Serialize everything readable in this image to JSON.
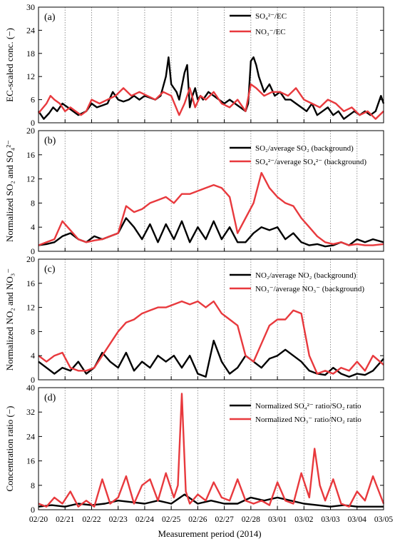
{
  "colors": {
    "black": "#000000",
    "red": "#e8393d",
    "grid": "#7a7a7a"
  },
  "x_axis": {
    "label": "Measurement period (2014)",
    "ticks": [
      "02/20",
      "02/21",
      "02/22",
      "02/23",
      "02/24",
      "02/25",
      "02/26",
      "02/27",
      "02/28",
      "03/01",
      "03/02",
      "03/03",
      "03/04",
      "03/05"
    ]
  },
  "chart_data": [
    {
      "type": "line",
      "panel_label": "(a)",
      "ylabel": "EC-scaled conc. (−)",
      "ylim": [
        0,
        30
      ],
      "yticks": [
        "0",
        "6",
        "12",
        "18",
        "24",
        "30"
      ],
      "x_domain": [
        0,
        13
      ],
      "legend_position": "top-right",
      "series": [
        {
          "name": "SO₄²⁻/EC",
          "color": "#000000",
          "x": [
            0,
            0.2,
            0.4,
            0.55,
            0.7,
            0.9,
            1.1,
            1.3,
            1.5,
            1.8,
            2.0,
            2.2,
            2.4,
            2.6,
            2.8,
            3.0,
            3.2,
            3.4,
            3.6,
            3.8,
            4.0,
            4.2,
            4.4,
            4.6,
            4.8,
            4.9,
            5.0,
            5.1,
            5.2,
            5.3,
            5.5,
            5.6,
            5.7,
            5.8,
            5.9,
            6.0,
            6.1,
            6.2,
            6.4,
            6.6,
            6.8,
            7.0,
            7.2,
            7.4,
            7.6,
            7.8,
            7.9,
            8.0,
            8.1,
            8.2,
            8.3,
            8.5,
            8.7,
            8.9,
            9.1,
            9.3,
            9.5,
            9.7,
            9.9,
            10.1,
            10.3,
            10.5,
            10.7,
            10.9,
            11.1,
            11.3,
            11.5,
            11.7,
            11.9,
            12.1,
            12.3,
            12.5,
            12.7,
            12.9,
            13.0
          ],
          "y": [
            3,
            1,
            2.5,
            4,
            3,
            5,
            4,
            3,
            2,
            3,
            5,
            4,
            4.5,
            5,
            8,
            6,
            5.5,
            6,
            7,
            6,
            7,
            6.5,
            6,
            7,
            12,
            17,
            10,
            9,
            8,
            6,
            13,
            15,
            4,
            7,
            9,
            6,
            7,
            6,
            8,
            7,
            6,
            5,
            6,
            5,
            4,
            3,
            5,
            16,
            17,
            15,
            12,
            8,
            10,
            7,
            8,
            6,
            6,
            5,
            4,
            3,
            5,
            2,
            3,
            4,
            2,
            3,
            1,
            2,
            3,
            2,
            3,
            2,
            3,
            7,
            5
          ]
        },
        {
          "name": "NO₃⁻/EC",
          "color": "#e8393d",
          "x": [
            0,
            0.3,
            0.45,
            0.6,
            0.8,
            1.0,
            1.2,
            1.4,
            1.6,
            1.8,
            2.0,
            2.3,
            2.6,
            2.9,
            3.2,
            3.5,
            3.8,
            4.1,
            4.4,
            4.7,
            5.0,
            5.3,
            5.5,
            5.7,
            5.9,
            6.1,
            6.3,
            6.6,
            6.9,
            7.2,
            7.5,
            7.8,
            8.0,
            8.2,
            8.5,
            8.8,
            9.1,
            9.4,
            9.7,
            10.0,
            10.3,
            10.6,
            10.9,
            11.2,
            11.5,
            11.8,
            12.1,
            12.4,
            12.7,
            13.0
          ],
          "y": [
            2.5,
            5,
            7,
            6,
            5,
            3,
            4,
            3,
            2,
            3,
            6,
            5,
            6,
            7,
            9,
            7,
            8,
            7,
            6,
            8,
            7,
            2,
            5,
            9,
            4,
            7,
            6,
            8,
            5,
            4,
            6,
            3,
            10,
            9,
            7,
            8,
            8,
            7,
            9,
            6,
            5,
            4,
            6,
            5,
            3,
            4,
            2,
            3,
            1,
            3
          ]
        }
      ]
    },
    {
      "type": "line",
      "panel_label": "(b)",
      "ylabel": "Normalized SO₂ and SO₄²⁻",
      "ylim": [
        0,
        20
      ],
      "yticks": [
        "0",
        "4",
        "8",
        "12",
        "16",
        "20"
      ],
      "x_domain": [
        0,
        13
      ],
      "legend_position": "top-right",
      "series": [
        {
          "name": "SO₂/average SO₂ (background)",
          "color": "#000000",
          "x": [
            0,
            0.3,
            0.6,
            0.9,
            1.2,
            1.5,
            1.8,
            2.1,
            2.4,
            2.7,
            3.0,
            3.3,
            3.6,
            3.9,
            4.2,
            4.5,
            4.8,
            5.1,
            5.4,
            5.7,
            6.0,
            6.3,
            6.6,
            6.9,
            7.2,
            7.5,
            7.8,
            8.1,
            8.4,
            8.7,
            9.0,
            9.3,
            9.6,
            9.9,
            10.2,
            10.5,
            10.8,
            11.1,
            11.4,
            11.7,
            12.0,
            12.3,
            12.6,
            13.0
          ],
          "y": [
            1,
            1.2,
            1.5,
            2.5,
            3,
            2,
            1.5,
            2.5,
            2,
            2.5,
            3,
            5.5,
            4,
            2,
            4.5,
            1.5,
            4.5,
            2,
            5,
            1.5,
            4,
            2,
            5,
            2,
            4,
            1.5,
            1.5,
            3,
            4,
            3.5,
            4,
            2,
            3,
            1.5,
            1,
            1.2,
            0.8,
            1,
            1.5,
            1,
            2,
            1.5,
            2,
            1.5
          ]
        },
        {
          "name": "SO₄²⁻/average SO₄²⁻ (background)",
          "color": "#e8393d",
          "x": [
            0,
            0.3,
            0.6,
            0.9,
            1.2,
            1.5,
            1.8,
            2.1,
            2.4,
            2.7,
            3.0,
            3.3,
            3.6,
            3.9,
            4.2,
            4.5,
            4.8,
            5.1,
            5.4,
            5.7,
            6.0,
            6.3,
            6.6,
            6.9,
            7.2,
            7.5,
            7.8,
            8.1,
            8.4,
            8.7,
            9.0,
            9.3,
            9.6,
            9.9,
            10.2,
            10.5,
            10.8,
            11.1,
            11.4,
            11.7,
            12.0,
            12.3,
            12.6,
            13.0
          ],
          "y": [
            1,
            1.5,
            2,
            5,
            3.5,
            2,
            1.5,
            1.8,
            2,
            2.5,
            3,
            7.5,
            6.5,
            7,
            8,
            8.5,
            9,
            8,
            9.5,
            9.5,
            10,
            10.5,
            11,
            10.5,
            9,
            3,
            5.5,
            8,
            13,
            10.5,
            9,
            8,
            7.5,
            5.5,
            4,
            2.5,
            1.5,
            1.2,
            1.5,
            1,
            1.2,
            1,
            1,
            1.2
          ]
        }
      ]
    },
    {
      "type": "line",
      "panel_label": "(c)",
      "ylabel": "Normalized NO₂ and NO₃⁻",
      "ylim": [
        0,
        20
      ],
      "yticks": [
        "0",
        "4",
        "8",
        "12",
        "16",
        "20"
      ],
      "x_domain": [
        0,
        13
      ],
      "legend_position": "top-right",
      "series": [
        {
          "name": "NO₂/average NO₂ (background)",
          "color": "#000000",
          "x": [
            0,
            0.3,
            0.6,
            0.9,
            1.2,
            1.5,
            1.8,
            2.1,
            2.4,
            2.7,
            3.0,
            3.3,
            3.6,
            3.9,
            4.2,
            4.5,
            4.8,
            5.1,
            5.4,
            5.7,
            6.0,
            6.3,
            6.6,
            6.9,
            7.2,
            7.5,
            7.8,
            8.1,
            8.4,
            8.7,
            9.0,
            9.3,
            9.6,
            9.9,
            10.2,
            10.5,
            10.8,
            11.1,
            11.4,
            11.7,
            12.0,
            12.3,
            12.6,
            13.0
          ],
          "y": [
            3,
            2,
            1,
            2,
            1.5,
            3,
            1,
            2,
            4.5,
            3,
            2,
            4.5,
            1.5,
            3,
            2,
            4,
            3,
            4,
            2,
            4,
            1,
            0.5,
            6.5,
            3,
            1,
            2,
            4,
            3,
            2,
            3.5,
            4,
            5,
            4,
            3,
            1.5,
            1,
            0.8,
            2,
            1,
            0.5,
            1,
            0.8,
            1.5,
            3.5
          ]
        },
        {
          "name": "NO₃⁻/average NO₃⁻ (background)",
          "color": "#e8393d",
          "x": [
            0,
            0.3,
            0.6,
            0.9,
            1.2,
            1.5,
            1.8,
            2.1,
            2.4,
            2.7,
            3.0,
            3.3,
            3.6,
            3.9,
            4.2,
            4.5,
            4.8,
            5.1,
            5.4,
            5.7,
            6.0,
            6.3,
            6.6,
            6.9,
            7.2,
            7.5,
            7.8,
            8.1,
            8.4,
            8.7,
            9.0,
            9.3,
            9.6,
            9.9,
            10.2,
            10.5,
            10.8,
            11.1,
            11.4,
            11.7,
            12.0,
            12.3,
            12.6,
            13.0
          ],
          "y": [
            4,
            3,
            4,
            4.5,
            2,
            1.5,
            1.5,
            2,
            4,
            6,
            8,
            9.5,
            10,
            11,
            11.5,
            12,
            12,
            12.5,
            13,
            12.5,
            13,
            12,
            13,
            11,
            10,
            9,
            4,
            3,
            6,
            9,
            10,
            10,
            11.5,
            11,
            4,
            1,
            1.5,
            1,
            2,
            1.5,
            3,
            1.5,
            4,
            2.5
          ]
        }
      ]
    },
    {
      "type": "line",
      "panel_label": "(d)",
      "ylabel": "Concentration ratio (−)",
      "ylim": [
        0,
        40
      ],
      "yticks": [
        "0",
        "8",
        "16",
        "24",
        "32",
        "40"
      ],
      "x_domain": [
        0,
        13
      ],
      "legend_position": "top-right",
      "series": [
        {
          "name": "Normalized SO₄²⁻ ratio/SO₂ ratio",
          "color": "#000000",
          "x": [
            0,
            0.5,
            1.0,
            1.5,
            2.0,
            2.5,
            3.0,
            3.5,
            4.0,
            4.5,
            5.0,
            5.5,
            6.0,
            6.5,
            7.0,
            7.5,
            8.0,
            8.5,
            9.0,
            9.5,
            10.0,
            10.5,
            11.0,
            11.5,
            12.0,
            12.5,
            13.0
          ],
          "y": [
            1,
            1.5,
            1,
            2,
            1.5,
            2,
            3,
            2.5,
            2,
            3,
            2,
            5,
            2,
            3,
            2,
            2,
            4,
            3,
            4,
            3,
            2,
            1.5,
            1,
            1.5,
            1,
            1,
            1
          ]
        },
        {
          "name": "Normalized NO₃⁻ ratio/NO₂ ratio",
          "color": "#e8393d",
          "x": [
            0,
            0.3,
            0.6,
            0.9,
            1.2,
            1.5,
            1.8,
            2.1,
            2.4,
            2.7,
            3.0,
            3.3,
            3.6,
            3.9,
            4.2,
            4.5,
            4.8,
            5.1,
            5.25,
            5.4,
            5.55,
            5.7,
            6.0,
            6.3,
            6.6,
            6.9,
            7.2,
            7.5,
            7.8,
            8.1,
            8.4,
            8.7,
            9.0,
            9.3,
            9.6,
            9.9,
            10.2,
            10.4,
            10.6,
            10.8,
            11.1,
            11.4,
            11.7,
            12.0,
            12.3,
            12.6,
            13.0
          ],
          "y": [
            2,
            1,
            4,
            2,
            6,
            1,
            3,
            1,
            10,
            2,
            4,
            11,
            2,
            8,
            10,
            3,
            12,
            4,
            8,
            38,
            6,
            2,
            5,
            3,
            9,
            4,
            3,
            10,
            3,
            2,
            3,
            1.5,
            9,
            3,
            2,
            12,
            4,
            20,
            8,
            3,
            10,
            2,
            1,
            6,
            3,
            11,
            2
          ]
        }
      ]
    }
  ]
}
